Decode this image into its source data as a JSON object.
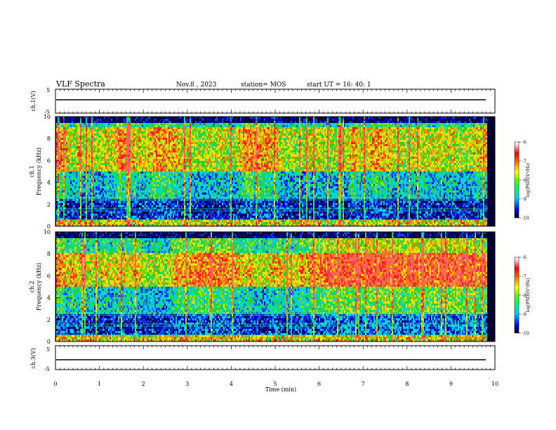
{
  "header": {
    "title": "VLF Spectra",
    "date": "Nov.8 , 2023",
    "station": "station= MOS",
    "start_ut": "start UT = 16: 40: 1"
  },
  "chart_data": [
    {
      "type": "line",
      "panel": "ch1-waveform",
      "ylabel": "ch.1(V)",
      "y_ticks": [
        "5",
        "-5"
      ],
      "ylim": [
        -5,
        5
      ],
      "series": [
        {
          "x": [
            0,
            9.8
          ],
          "y": [
            0,
            0
          ]
        }
      ]
    },
    {
      "type": "heatmap",
      "panel": "ch1-spectrogram",
      "ylabel": "ch.1 Frequency (kHz)",
      "y_ticks": [
        "0",
        "2",
        "4",
        "6",
        "8",
        "10"
      ],
      "ylim": [
        0,
        10
      ],
      "colorbar": {
        "label": "log(PSD)(V²/Hz)",
        "ticks": [
          "-6",
          "-7",
          "-8",
          "-9",
          "-10"
        ],
        "range": [
          -10,
          -6
        ]
      },
      "dominant_band_khz": [
        5,
        9
      ]
    },
    {
      "type": "heatmap",
      "panel": "ch2-spectrogram",
      "ylabel": "ch.2 Frequency (kHz)",
      "y_ticks": [
        "0",
        "2",
        "4",
        "6",
        "8",
        "10"
      ],
      "ylim": [
        0,
        10
      ],
      "colorbar": {
        "label": "log(PSD)(V²/Hz)",
        "ticks": [
          "-6",
          "-7",
          "-8",
          "-9",
          "-10"
        ],
        "range": [
          -10,
          -6
        ]
      },
      "dominant_band_khz": [
        5,
        8
      ]
    },
    {
      "type": "line",
      "panel": "ch3-waveform",
      "ylabel": "ch.3(V)",
      "y_ticks": [
        "5",
        "-5"
      ],
      "ylim": [
        -5,
        5
      ],
      "series": [
        {
          "x": [
            0,
            9.8
          ],
          "y": [
            0,
            0
          ]
        }
      ]
    }
  ],
  "xaxis": {
    "label": "Time (min)",
    "ticks": [
      "0",
      "1",
      "2",
      "3",
      "4",
      "5",
      "6",
      "7",
      "8",
      "9",
      "10"
    ],
    "xlim": [
      0,
      10
    ]
  },
  "colors": {
    "spectro_stops": [
      "#000040",
      "#0000c8",
      "#0050ff",
      "#00c8ff",
      "#00e0a0",
      "#30d020",
      "#a0e000",
      "#ffe000",
      "#ff8000",
      "#ff2020",
      "#ff6060"
    ],
    "colorbar_stops": [
      "#000000",
      "#0000ff",
      "#00c8ff",
      "#00ff60",
      "#60ff00",
      "#ffff00",
      "#ff8000",
      "#ff0000",
      "#ffc0c0",
      "#ffffff"
    ]
  }
}
